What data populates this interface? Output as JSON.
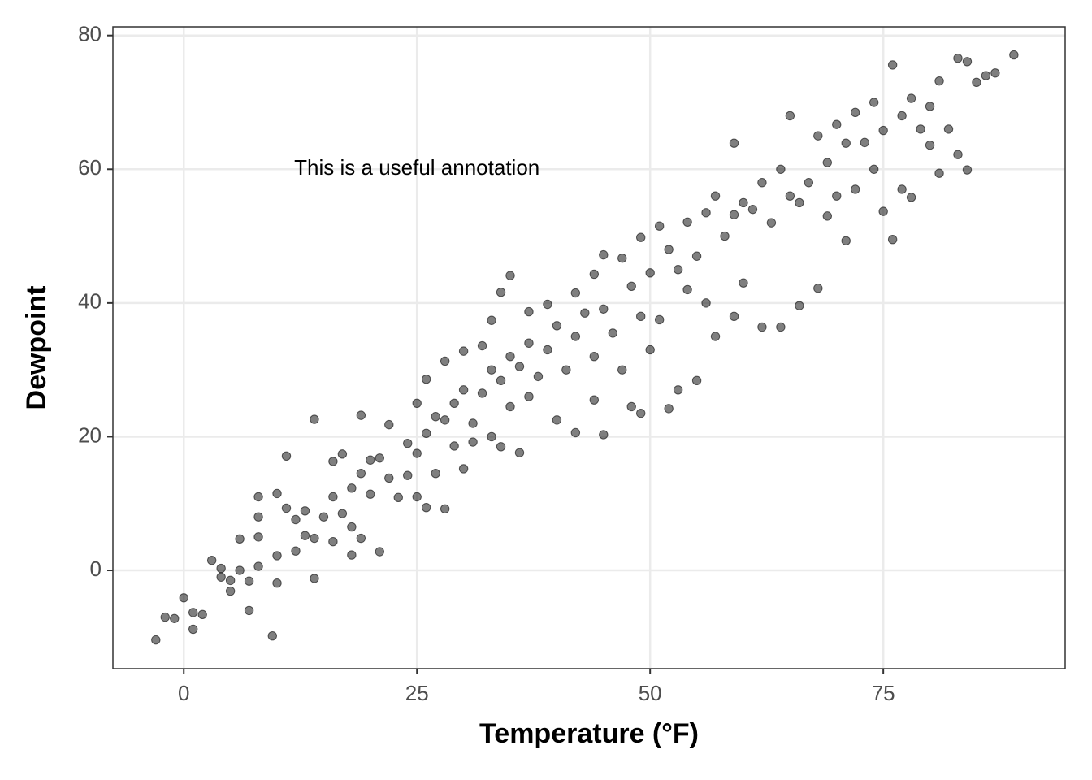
{
  "chart_data": {
    "type": "scatter",
    "x_label": "Temperature (°F)",
    "y_label": "Dewpoint",
    "annotations": [
      {
        "text": "This is a useful annotation",
        "x": 25,
        "y": 60
      }
    ],
    "xlim": [
      -7.6,
      94.5
    ],
    "ylim": [
      -14.7,
      81.3
    ],
    "xticks": [
      0,
      25,
      50,
      75
    ],
    "yticks": [
      0,
      20,
      40,
      60,
      80
    ],
    "grid": true,
    "series": [
      {
        "color": "#000000",
        "x": [
          -3,
          -2,
          -1,
          0,
          1,
          1,
          2,
          3,
          4,
          4,
          5,
          5,
          6,
          6,
          7,
          7,
          8,
          8,
          8,
          8,
          9.5,
          10,
          10,
          10,
          11,
          11,
          12,
          12,
          13,
          13,
          14,
          14,
          14,
          15,
          16,
          16,
          16,
          17,
          17,
          18,
          18,
          18,
          19,
          19,
          19,
          20,
          20,
          21,
          21,
          22,
          22,
          23,
          24,
          24,
          25,
          25,
          25,
          26,
          26,
          26,
          27,
          27,
          28,
          28,
          28,
          29,
          29,
          30,
          30,
          30,
          31,
          31,
          32,
          32,
          33,
          33,
          33,
          34,
          34,
          34,
          35,
          35,
          35,
          36,
          36,
          37,
          37,
          37,
          38,
          39,
          39,
          40,
          40,
          41,
          42,
          42,
          42,
          43,
          44,
          44,
          44,
          45,
          45,
          45,
          46,
          47,
          47,
          48,
          48,
          49,
          49,
          49,
          50,
          50,
          51,
          51,
          52,
          52,
          53,
          53,
          54,
          54,
          55,
          55,
          56,
          56,
          57,
          57,
          58,
          59,
          59,
          59,
          60,
          60,
          61,
          62,
          62,
          63,
          64,
          64,
          65,
          65,
          66,
          66,
          67,
          68,
          68,
          69,
          69,
          70,
          70,
          71,
          71,
          72,
          72,
          73,
          74,
          74,
          75,
          75,
          76,
          76,
          77,
          77,
          78,
          78,
          79,
          80,
          80,
          81,
          81,
          82,
          83,
          83,
          84,
          84,
          85,
          86,
          87,
          89
        ],
        "values": [
          -10.4,
          -7,
          -7.2,
          -4.1,
          -6.3,
          -8.8,
          -6.6,
          1.5,
          -1,
          0.3,
          -3.1,
          -1.5,
          0,
          4.7,
          -1.6,
          -6,
          0.6,
          5,
          8,
          11,
          -9.8,
          2.2,
          -1.9,
          11.5,
          17.1,
          9.3,
          2.9,
          7.6,
          5.2,
          8.9,
          22.6,
          4.8,
          -1.2,
          8,
          16.3,
          4.3,
          11,
          17.4,
          8.5,
          12.3,
          2.3,
          6.5,
          23.2,
          14.5,
          4.8,
          16.5,
          11.4,
          2.8,
          16.8,
          21.8,
          13.8,
          10.9,
          19,
          14.2,
          25,
          17.5,
          11,
          28.6,
          20.5,
          9.4,
          23,
          14.5,
          31.3,
          22.5,
          9.2,
          25,
          18.6,
          32.8,
          27,
          15.2,
          22,
          19.2,
          33.6,
          26.5,
          37.4,
          30,
          20,
          41.6,
          28.4,
          18.5,
          44.1,
          32,
          24.5,
          30.5,
          17.6,
          38.7,
          34,
          26,
          29,
          39.8,
          33,
          36.6,
          22.5,
          30,
          41.5,
          35,
          20.6,
          38.5,
          44.3,
          32,
          25.5,
          47.2,
          39.1,
          20.3,
          35.5,
          46.7,
          30,
          42.5,
          24.5,
          49.8,
          38,
          23.5,
          44.5,
          33,
          51.5,
          37.5,
          48,
          24.2,
          45,
          27,
          52.1,
          42,
          47,
          28.4,
          53.5,
          40,
          56,
          35,
          50,
          63.9,
          53.2,
          38,
          55,
          43,
          54,
          58,
          36.4,
          52,
          60,
          36.4,
          68,
          56,
          55,
          39.6,
          58,
          65,
          42.2,
          61,
          53,
          66.7,
          56,
          63.9,
          49.3,
          68.5,
          57,
          64,
          70,
          60,
          53.7,
          65.8,
          75.6,
          49.5,
          68,
          57,
          70.6,
          55.8,
          66,
          69.4,
          63.6,
          73.2,
          59.4,
          66,
          76.6,
          62.2,
          76.1,
          59.9,
          73,
          74,
          74.4,
          77.1
        ]
      }
    ]
  }
}
